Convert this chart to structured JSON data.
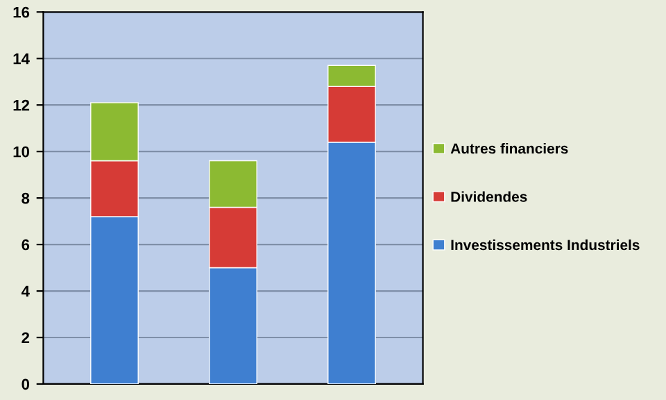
{
  "chart_data": {
    "type": "bar",
    "stacked": true,
    "categories": [
      null,
      null,
      null
    ],
    "series": [
      {
        "name": "Investissements Industriels",
        "color": "#3f7fd0",
        "values": [
          7.2,
          5.0,
          10.4
        ]
      },
      {
        "name": "Dividendes",
        "color": "#d63b36",
        "values": [
          2.4,
          2.6,
          2.4
        ]
      },
      {
        "name": "Autres financiers",
        "color": "#8cba32",
        "values": [
          2.5,
          2.0,
          0.9
        ]
      }
    ],
    "ylim": [
      0,
      16
    ],
    "yticks": [
      0,
      2,
      4,
      6,
      8,
      10,
      12,
      14,
      16
    ],
    "grid": "y",
    "legend": "right"
  }
}
